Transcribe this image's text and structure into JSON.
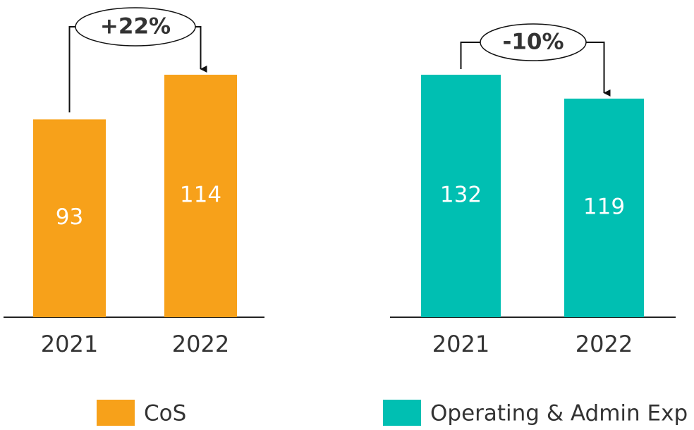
{
  "chart_data": [
    {
      "type": "bar",
      "categories": [
        "2021",
        "2022"
      ],
      "series": [
        {
          "name": "CoS",
          "color": "#F7A11A",
          "values": [
            93,
            114
          ]
        }
      ],
      "annotation": "+22%"
    },
    {
      "type": "bar",
      "categories": [
        "2021",
        "2022"
      ],
      "series": [
        {
          "name": "Operating & Admin Exp",
          "color": "#00BFB2",
          "values": [
            132,
            119
          ]
        }
      ],
      "annotation": "-10%"
    }
  ]
}
